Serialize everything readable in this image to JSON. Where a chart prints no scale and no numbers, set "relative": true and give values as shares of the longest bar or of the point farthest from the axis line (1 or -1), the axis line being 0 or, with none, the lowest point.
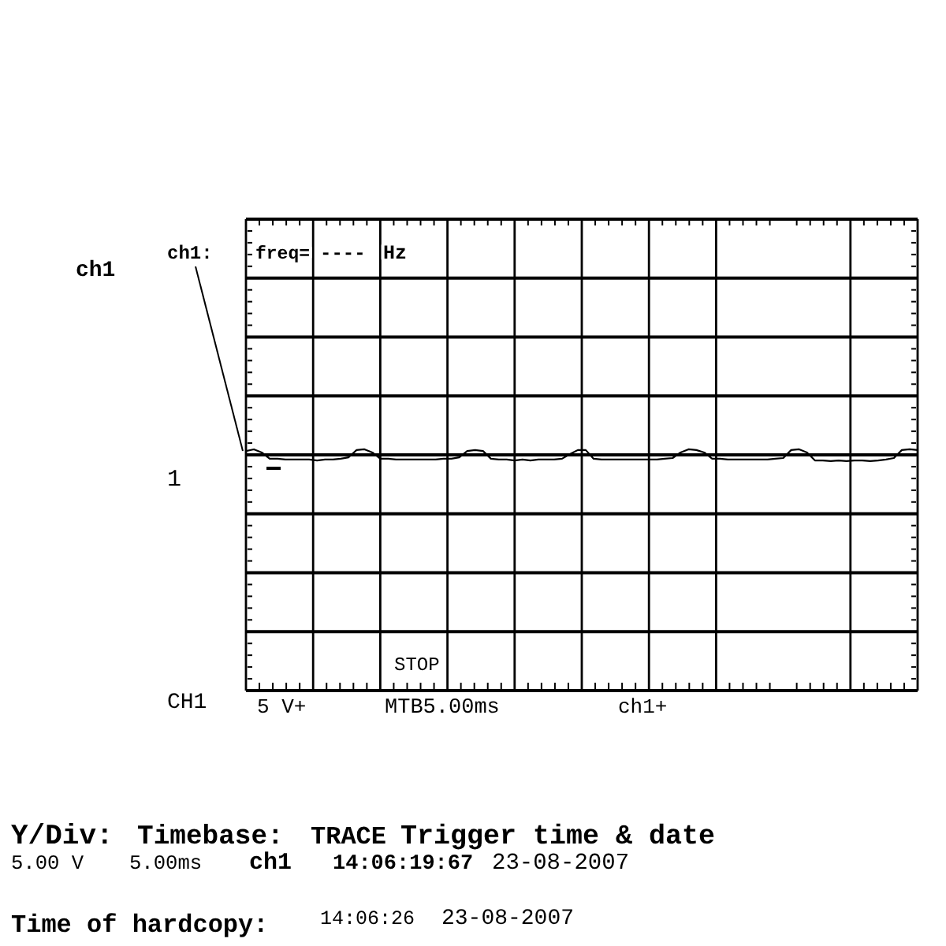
{
  "chart_data": {
    "type": "line",
    "relative": true,
    "grid": true,
    "color": "#000000",
    "categories": [
      null,
      null,
      null,
      null,
      null,
      null,
      null,
      null,
      null,
      null,
      null,
      null,
      null,
      null,
      null,
      null,
      null,
      null,
      null,
      null,
      null,
      null,
      null,
      null,
      null,
      null,
      null,
      null,
      null,
      null,
      null,
      null,
      null,
      null,
      null,
      null,
      null,
      null,
      null,
      null,
      null,
      null,
      null,
      null,
      null,
      null,
      null,
      null,
      null,
      null,
      null,
      null,
      null,
      null,
      null,
      null,
      null,
      null,
      null,
      null,
      null,
      null,
      null,
      null,
      null,
      null,
      null,
      null,
      null,
      null,
      null,
      null,
      null,
      null,
      null,
      null,
      null,
      null,
      null,
      null,
      null,
      null,
      null,
      null,
      null,
      null
    ],
    "values": [
      0.993,
      1,
      0.987,
      0.961,
      0.961,
      0.958,
      0.958,
      0.958,
      0.958,
      0.954,
      0.958,
      0.958,
      0.961,
      0.967,
      0.997,
      1,
      0.987,
      0.961,
      0.961,
      0.958,
      0.958,
      0.958,
      0.958,
      0.958,
      0.958,
      0.961,
      0.961,
      0.967,
      0.993,
      0.997,
      0.993,
      0.961,
      0.958,
      0.958,
      0.954,
      0.958,
      0.954,
      0.958,
      0.958,
      0.958,
      0.961,
      0.98,
      0.997,
      0.997,
      0.961,
      0.958,
      0.958,
      0.958,
      0.958,
      0.958,
      0.958,
      0.958,
      0.958,
      0.961,
      0.964,
      0.987,
      1,
      0.997,
      0.987,
      0.961,
      0.961,
      0.958,
      0.958,
      0.958,
      0.958,
      0.958,
      0.958,
      0.961,
      0.964,
      0.997,
      1,
      0.987,
      0.954,
      0.954,
      0.951,
      0.954,
      0.951,
      0.954,
      0.954,
      0.951,
      0.954,
      0.958,
      0.964,
      0.997,
      1,
      0.997
    ],
    "annotations": [
      "ch1",
      "ch1:",
      "freq=",
      "----",
      "Hz",
      "1",
      "CH1",
      "5 V+",
      "STOP",
      "MTB5.00ms",
      "ch1+",
      "Y/Div:",
      "Timebase:",
      "TRACE",
      "Trigger time & date",
      "5.00 V",
      "5.00ms",
      "ch1",
      "14:06:19:67",
      "23-08-2007",
      "Time of hardcopy:",
      "14:06:26",
      "23-08-2007"
    ]
  }
}
